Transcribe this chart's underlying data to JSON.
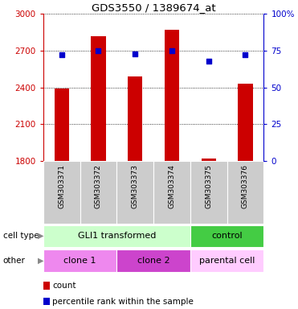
{
  "title": "GDS3550 / 1389674_at",
  "samples": [
    "GSM303371",
    "GSM303372",
    "GSM303373",
    "GSM303374",
    "GSM303375",
    "GSM303376"
  ],
  "counts": [
    2390,
    2820,
    2490,
    2870,
    1820,
    2430
  ],
  "percentiles": [
    72,
    75,
    73,
    75,
    68,
    72
  ],
  "ylim_left": [
    1800,
    3000
  ],
  "ylim_right": [
    0,
    100
  ],
  "left_ticks": [
    1800,
    2100,
    2400,
    2700,
    3000
  ],
  "right_ticks": [
    0,
    25,
    50,
    75,
    100
  ],
  "right_tick_labels": [
    "0",
    "25",
    "50",
    "75",
    "100%"
  ],
  "bar_color": "#cc0000",
  "dot_color": "#0000cc",
  "cell_type_labels": [
    "GLI1 transformed",
    "control"
  ],
  "cell_type_colors": [
    "#ccffcc",
    "#44cc44"
  ],
  "other_labels": [
    "clone 1",
    "clone 2",
    "parental cell"
  ],
  "other_colors": [
    "#ee88ee",
    "#cc44cc",
    "#ffccff"
  ],
  "bg_color": "#ffffff",
  "axis_color_left": "#cc0000",
  "axis_color_right": "#0000cc",
  "sample_bg": "#cccccc",
  "bar_width": 0.4
}
